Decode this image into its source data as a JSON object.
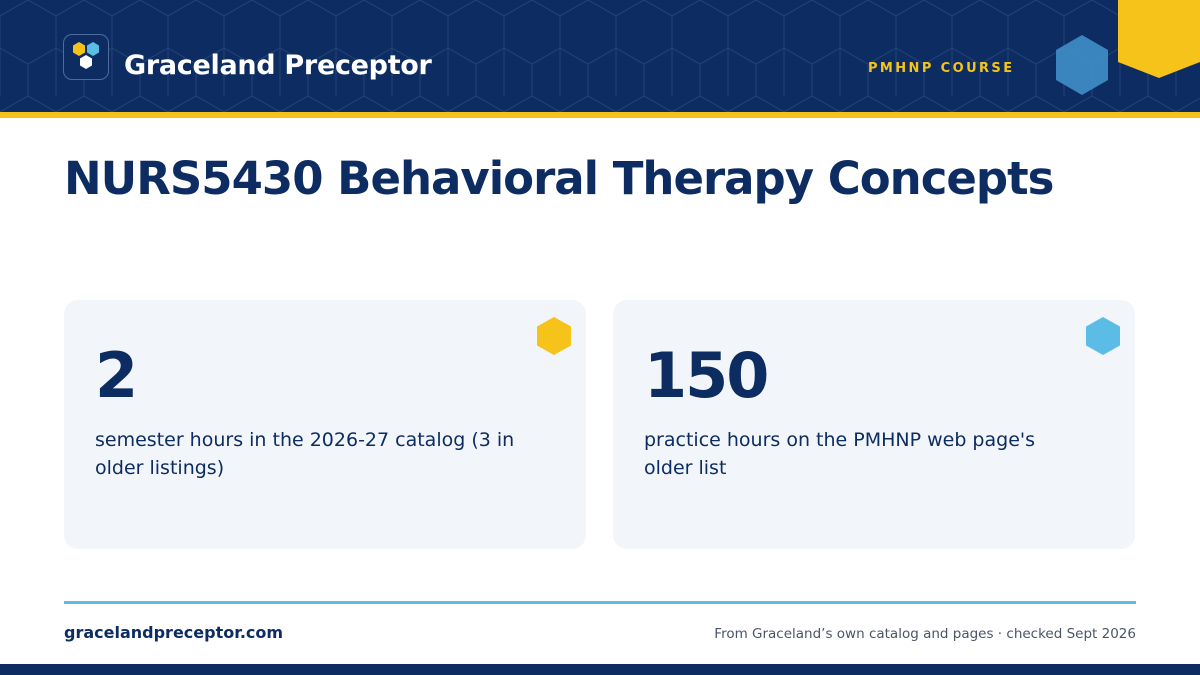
{
  "header": {
    "brand_name": "Graceland Preceptor",
    "course_tag": "PMHNP COURSE",
    "logo_icon": "hexagon-cluster-icon"
  },
  "title": "NURS5430 Behavioral Therapy Concepts",
  "stats": [
    {
      "value": "2",
      "text": "semester hours in the 2026-27 catalog (3 in older listings)",
      "accent": "#f6c31a"
    },
    {
      "value": "150",
      "text": "practice hours on the PMHNP web page's older list",
      "accent": "#5bbde6"
    }
  ],
  "footer": {
    "site_url": "gracelandpreceptor.com",
    "source_note": "From Graceland’s own catalog and pages · checked Sept 2026"
  },
  "colors": {
    "navy": "#0d2d62",
    "yellow": "#f6c31a",
    "light_blue": "#5bbde6",
    "card_bg": "#f2f5f9"
  }
}
